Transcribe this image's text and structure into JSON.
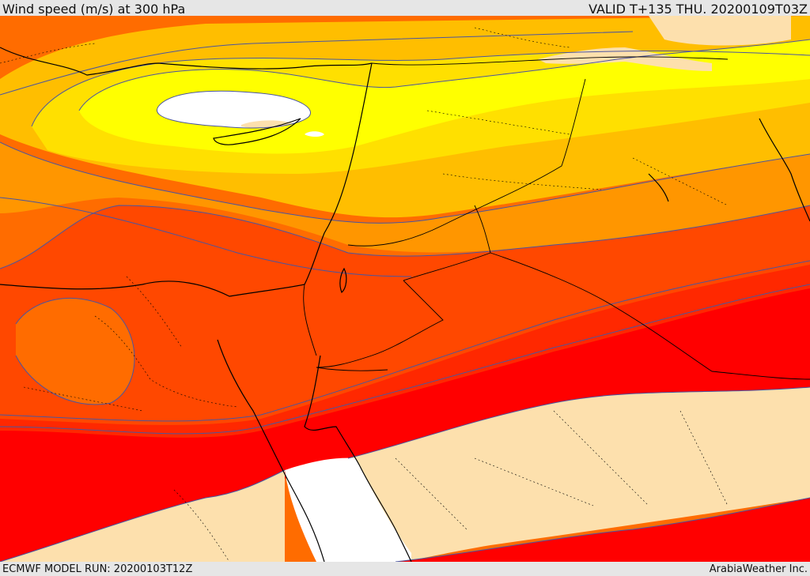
{
  "header": {
    "title": "Wind speed (m/s) at 300 hPa",
    "valid": "VALID T+135 THU. 20200109T03Z"
  },
  "footer": {
    "model_run": "ECMWF MODEL RUN: 20200103T12Z",
    "credit": "ArabiaWeather Inc."
  },
  "colors": {
    "calm": "#ffffff",
    "very_light": "#fde0ad",
    "yellow": "#ffff00",
    "gold": "#ffe000",
    "amber": "#ffbe00",
    "light_orange": "#ff9600",
    "orange": "#ff6c00",
    "dark_orange": "#ff4800",
    "red_orange": "#ff2800",
    "red": "#ff0000",
    "contour": "#4a55a0",
    "boundary": "#000000"
  }
}
